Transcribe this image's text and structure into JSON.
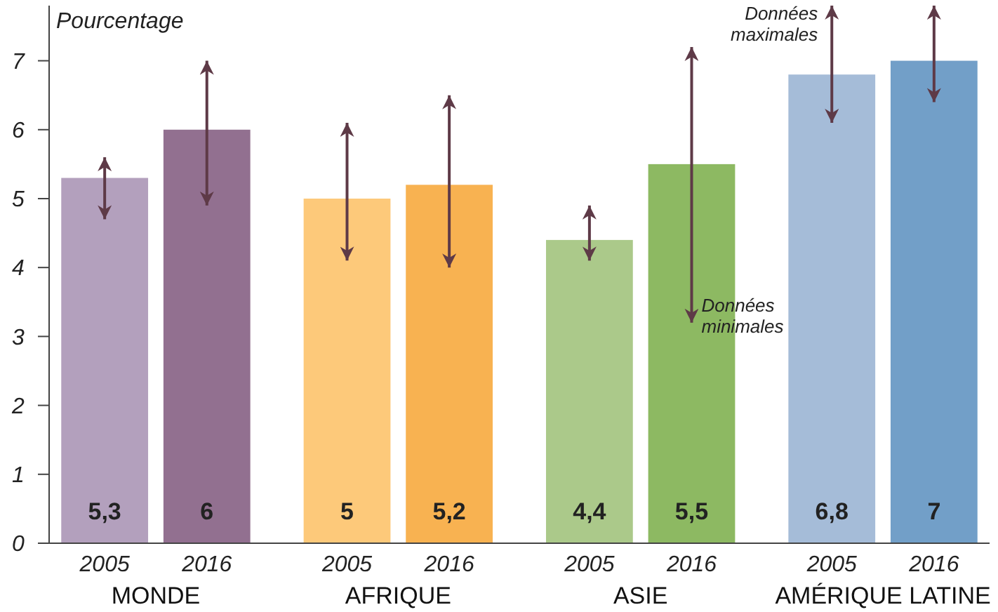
{
  "chart_data": {
    "type": "bar",
    "ylabel": "Pourcentage",
    "categories": [
      "MONDE",
      "AFRIQUE",
      "ASIE",
      "AMÉRIQUE LATINE"
    ],
    "series": [
      {
        "name": "2005",
        "values": [
          5.3,
          5,
          4.4,
          6.8
        ],
        "colors": [
          "#b3a0bd",
          "#fdc97a",
          "#abc98a",
          "#a5bcd8"
        ],
        "value_labels": [
          "5,3",
          "5",
          "4,4",
          "6,8"
        ],
        "errors": [
          [
            4.7,
            5.6
          ],
          [
            4.1,
            6.1
          ],
          [
            4.1,
            4.9
          ],
          [
            6.1,
            7.8
          ]
        ]
      },
      {
        "name": "2016",
        "values": [
          6,
          5.2,
          5.5,
          7
        ],
        "colors": [
          "#927090",
          "#f8b251",
          "#8db962",
          "#729fc8"
        ],
        "value_labels": [
          "6",
          "5,2",
          "5,5",
          "7"
        ],
        "errors": [
          [
            4.9,
            7
          ],
          [
            4,
            6.5
          ],
          [
            3.2,
            7.2
          ],
          [
            6.4,
            7.8
          ]
        ]
      }
    ],
    "ylim": [
      0,
      7.8
    ],
    "yticks": [
      0,
      1,
      2,
      3,
      4,
      5,
      6,
      7
    ],
    "grid": false,
    "annotations": [
      "Données maximales",
      "Données minimales"
    ]
  }
}
